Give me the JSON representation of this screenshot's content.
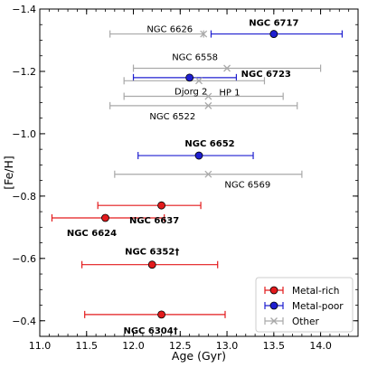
{
  "chart_data": {
    "type": "scatter",
    "xlabel": "Age (Gyr)",
    "ylabel": "[Fe/H]",
    "xlim": [
      11.0,
      14.4
    ],
    "ylim": [
      -0.35,
      -1.4
    ],
    "y_inverted": true,
    "xticks": [
      "11.0",
      "11.5",
      "12.0",
      "12.5",
      "13.0",
      "13.5",
      "14.0"
    ],
    "yticks": [
      "−1.4",
      "−1.2",
      "−1.0",
      "−0.8",
      "−0.6",
      "−0.4"
    ],
    "legend_position": "lower-right",
    "series": [
      {
        "name": "Metal-rich",
        "marker": "circle",
        "color": "#e31a1c",
        "points": [
          {
            "label": "NGC 6637",
            "age": 12.3,
            "feh": -0.77,
            "age_err": [
              0.68,
              0.42
            ],
            "bold": true
          },
          {
            "label": "NGC 6624",
            "age": 11.7,
            "feh": -0.73,
            "age_err": [
              0.57,
              0.63
            ],
            "bold": true
          },
          {
            "label": "NGC 6352†",
            "age": 12.2,
            "feh": -0.58,
            "age_err": [
              0.75,
              0.7
            ],
            "bold": true
          },
          {
            "label": "NGC 6304†",
            "age": 12.3,
            "feh": -0.42,
            "age_err": [
              0.82,
              0.68
            ],
            "bold": true
          }
        ]
      },
      {
        "name": "Metal-poor",
        "marker": "circle",
        "color": "#1f1fd0",
        "points": [
          {
            "label": "NGC 6717",
            "age": 13.5,
            "feh": -1.32,
            "age_err": [
              0.67,
              0.73
            ],
            "bold": true
          },
          {
            "label": "NGC 6723",
            "age": 12.6,
            "feh": -1.18,
            "age_err": [
              0.6,
              0.5
            ],
            "bold": true
          },
          {
            "label": "NGC 6652",
            "age": 12.7,
            "feh": -0.93,
            "age_err": [
              0.65,
              0.58
            ],
            "bold": true
          }
        ]
      },
      {
        "name": "Other",
        "marker": "x",
        "color": "#a9a9a9",
        "points": [
          {
            "label": "NGC 6626",
            "age": 12.75,
            "feh": -1.32,
            "age_err": [
              1.0,
              0.0
            ],
            "bold": false
          },
          {
            "label": "NGC 6558",
            "age": 13.0,
            "feh": -1.21,
            "age_err": [
              1.0,
              1.0
            ],
            "bold": false
          },
          {
            "label": "Djorg 2",
            "age": 12.7,
            "feh": -1.17,
            "age_err": [
              0.8,
              0.7
            ],
            "bold": false
          },
          {
            "label": "HP 1",
            "age": 12.8,
            "feh": -1.12,
            "age_err": [
              0.9,
              0.8
            ],
            "bold": false
          },
          {
            "label": "NGC 6522",
            "age": 12.8,
            "feh": -1.09,
            "age_err": [
              1.05,
              0.95
            ],
            "bold": false
          },
          {
            "label": "NGC 6569",
            "age": 12.8,
            "feh": -0.87,
            "age_err": [
              1.0,
              1.0
            ],
            "bold": false
          }
        ]
      }
    ]
  }
}
